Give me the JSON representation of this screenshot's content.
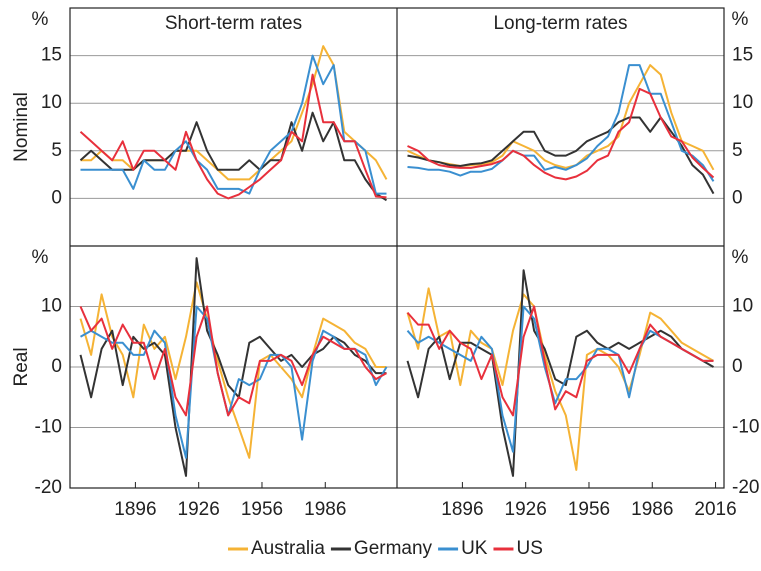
{
  "chart_data": {
    "type": "line",
    "x": [
      1870,
      1875,
      1880,
      1885,
      1890,
      1895,
      1900,
      1905,
      1910,
      1915,
      1920,
      1925,
      1930,
      1935,
      1940,
      1945,
      1950,
      1955,
      1960,
      1965,
      1970,
      1975,
      1980,
      1985,
      1990,
      1995,
      2000,
      2005,
      2010,
      2015
    ],
    "xlim": [
      1865,
      2020
    ],
    "series": [
      {
        "name": "Australia",
        "color": "#f5b335"
      },
      {
        "name": "Germany",
        "color": "#333333"
      },
      {
        "name": "UK",
        "color": "#3a8fd0"
      },
      {
        "name": "US",
        "color": "#e8303c"
      }
    ],
    "columns": [
      {
        "title": "Short-term rates",
        "xticks": [
          1896,
          1926,
          1956,
          1986
        ]
      },
      {
        "title": "Long-term rates",
        "xticks": [
          1896,
          1926,
          1956,
          1986,
          2016
        ]
      }
    ],
    "rows": [
      {
        "label": "Nominal",
        "unit": "%",
        "ylim": [
          -5,
          20
        ],
        "yticks": [
          0,
          5,
          10,
          15
        ],
        "panels": [
          {
            "values": [
              [
                4,
                4,
                5,
                4,
                4,
                3,
                4,
                4,
                4,
                5,
                5,
                5,
                4,
                3,
                2,
                2,
                2,
                3,
                4,
                5,
                6,
                9,
                12,
                16,
                14,
                7,
                6,
                5,
                4,
                2
              ],
              [
                4,
                5,
                4,
                3,
                3,
                3,
                4,
                4,
                4,
                5,
                5,
                8,
                5,
                3,
                3,
                3,
                4,
                3,
                4,
                4,
                8,
                5,
                9,
                6,
                8,
                4,
                4,
                2,
                0.5,
                -0.2
              ],
              [
                3,
                3,
                3,
                3,
                3,
                1,
                4,
                3,
                3,
                5,
                6,
                4,
                3,
                1,
                1,
                1,
                0.5,
                3,
                5,
                6,
                7,
                10,
                15,
                12,
                14,
                6,
                6,
                5,
                0.5,
                0.5
              ],
              [
                7,
                6,
                5,
                4,
                6,
                3,
                5,
                5,
                4,
                3,
                7,
                4,
                2,
                0.5,
                0,
                0.4,
                1.2,
                2,
                3,
                4,
                7,
                6,
                13,
                8,
                8,
                6,
                6,
                3,
                0.2,
                0.1
              ]
            ]
          },
          {
            "values": [
              [
                5,
                4.5,
                4,
                3.8,
                3.6,
                3.4,
                3.5,
                3.6,
                3.8,
                4.5,
                6,
                5.5,
                5,
                4,
                3.5,
                3.2,
                3.5,
                4.5,
                5,
                5.5,
                6.5,
                10,
                12,
                14,
                13,
                9,
                6,
                5.5,
                5,
                3
              ],
              [
                4.5,
                4.3,
                4,
                3.8,
                3.5,
                3.4,
                3.6,
                3.7,
                4,
                5,
                6,
                7,
                7,
                5,
                4.5,
                4.5,
                5,
                6,
                6.5,
                7,
                8,
                8.5,
                8.5,
                7,
                8.5,
                7,
                5.5,
                3.5,
                2.5,
                0.5
              ],
              [
                3.3,
                3.2,
                3,
                3,
                2.8,
                2.4,
                2.8,
                2.8,
                3.1,
                4,
                5,
                4.5,
                4.5,
                3,
                3.3,
                3,
                3.5,
                4.2,
                5.5,
                6.5,
                9,
                14,
                14,
                11,
                11,
                8,
                5,
                4.5,
                3.5,
                1.8
              ],
              [
                5.5,
                5,
                4,
                3.5,
                3.3,
                3.2,
                3.2,
                3.4,
                3.6,
                4,
                5,
                4.5,
                3.5,
                2.7,
                2.2,
                2,
                2.3,
                2.9,
                4,
                4.5,
                7,
                8,
                11.5,
                11,
                8.5,
                6.5,
                6,
                4.3,
                3.2,
                2.2
              ]
            ]
          }
        ]
      },
      {
        "label": "Real",
        "unit": "%",
        "ylim": [
          -20,
          20
        ],
        "yticks": [
          -20,
          -10,
          0,
          10
        ],
        "panels": [
          {
            "values": [
              [
                8,
                2,
                12,
                5,
                2,
                -5,
                7,
                3,
                5,
                -2,
                5,
                14,
                8,
                1,
                -5,
                -10,
                -15,
                1,
                2,
                0,
                -2,
                -5,
                2,
                8,
                7,
                6,
                4,
                3,
                0,
                0
              ],
              [
                2,
                -5,
                3,
                6,
                -3,
                5,
                3,
                4,
                2,
                -10,
                -18,
                18,
                6,
                2,
                -3,
                -5,
                4,
                5,
                3,
                1,
                2,
                0,
                2,
                3,
                5,
                4,
                2,
                1,
                -1,
                -1
              ],
              [
                5,
                6,
                5,
                4,
                4,
                2,
                2,
                6,
                4,
                -8,
                -15,
                10,
                8,
                -1,
                -8,
                -2,
                -3,
                -2,
                2,
                2,
                0,
                -12,
                1,
                6,
                5,
                3,
                3,
                2,
                -3,
                0
              ],
              [
                10,
                6,
                8,
                3,
                7,
                4,
                4,
                -2,
                3,
                -5,
                -8,
                5,
                10,
                -1,
                -8,
                -5,
                -6,
                1,
                1,
                2,
                1,
                -3,
                2,
                5,
                4,
                3,
                3,
                0,
                -2,
                -1
              ]
            ]
          },
          {
            "values": [
              [
                9,
                3,
                13,
                5,
                6,
                -3,
                6,
                4,
                3,
                -3,
                6,
                12,
                10,
                2,
                -4,
                -8,
                -17,
                2,
                3,
                2,
                0,
                -4,
                2,
                9,
                8,
                6,
                4,
                3,
                2,
                1
              ],
              [
                1,
                -5,
                3,
                5,
                -2,
                4,
                4,
                3,
                2,
                -10,
                -18,
                16,
                6,
                3,
                -2,
                -3,
                5,
                6,
                4,
                3,
                4,
                3,
                4,
                5,
                6,
                5,
                3,
                2,
                1,
                0
              ],
              [
                6,
                4,
                5,
                4,
                3,
                2,
                1,
                5,
                3,
                -8,
                -14,
                10,
                8,
                0,
                -6,
                -2,
                -2,
                0,
                3,
                3,
                2,
                -5,
                3,
                6,
                5,
                4,
                3,
                2,
                1,
                1
              ],
              [
                9,
                7,
                7,
                3,
                6,
                4,
                3,
                -2,
                2,
                -5,
                -8,
                5,
                10,
                1,
                -7,
                -4,
                -5,
                1,
                2,
                2,
                2,
                -1,
                3,
                7,
                5,
                4,
                3,
                2,
                1,
                1
              ]
            ]
          }
        ]
      }
    ]
  }
}
